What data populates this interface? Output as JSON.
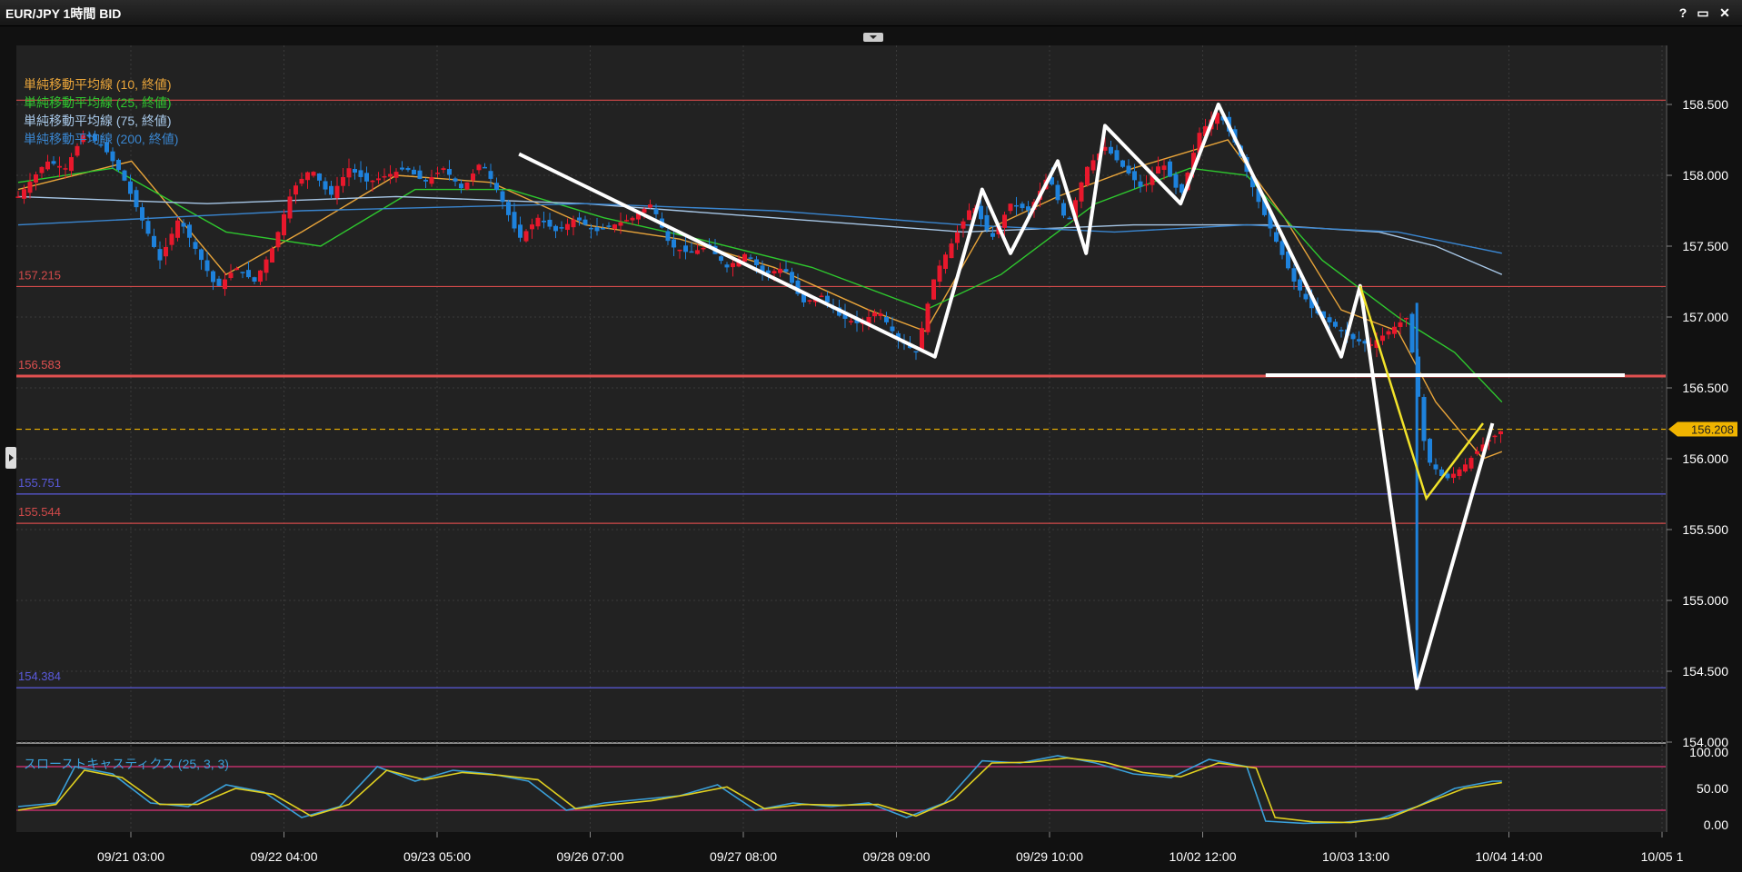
{
  "window": {
    "title": "EUR/JPY 1時間 BID",
    "controls": [
      "?",
      "▭",
      "✕"
    ]
  },
  "indicators": {
    "main": [
      {
        "label": "単純移動平均線 (10, 終値)",
        "color": "#e8a43a"
      },
      {
        "label": "単純移動平均線 (25, 終値)",
        "color": "#2ec82e"
      },
      {
        "label": "単純移動平均線 (75, 終値)",
        "color": "#a8c8e8"
      },
      {
        "label": "単純移動平均線 (200, 終値)",
        "color": "#3a86d0"
      }
    ],
    "sub": {
      "label": "スローストキャスティクス (25, 3, 3)",
      "color": "#3a9fd8"
    }
  },
  "colors": {
    "background": "#222222",
    "up_candle": "#e8182c",
    "down_candle": "#1e82dc",
    "grid": "#3a3a3a",
    "current_price": "#f0b400"
  },
  "chart_data": [
    {
      "type": "candlestick",
      "title": "EUR/JPY 1時間 BID",
      "x_tick_labels": [
        "09/21 03:00",
        "09/22 04:00",
        "09/23 05:00",
        "09/26 07:00",
        "09/27 08:00",
        "09/28 09:00",
        "09/29 10:00",
        "10/02 12:00",
        "10/03 13:00",
        "10/04 14:00",
        "10/05 1"
      ],
      "y_tick_labels": [
        "158.500",
        "158.000",
        "157.500",
        "157.000",
        "156.500",
        "156.000",
        "155.500",
        "155.000",
        "154.500",
        "154.000"
      ],
      "ylim": [
        154.0,
        158.85
      ],
      "current_price": {
        "label": "156.208",
        "value": 156.208
      },
      "horizontal_lines": [
        {
          "value": 158.53,
          "label": "",
          "color": "#d24a4a"
        },
        {
          "value": 157.215,
          "label": "157.215",
          "color": "#d24a4a"
        },
        {
          "value": 156.583,
          "label": "156.583",
          "color": "#e05050"
        },
        {
          "value": 155.751,
          "label": "155.751",
          "color": "#5a5adc"
        },
        {
          "value": 155.544,
          "label": "155.544",
          "color": "#d24a4a"
        },
        {
          "value": 154.384,
          "label": "154.384",
          "color": "#5a5adc"
        }
      ],
      "close_path": [
        [
          0,
          157.85
        ],
        [
          3,
          158.1
        ],
        [
          5,
          158.05
        ],
        [
          7,
          158.3
        ],
        [
          9,
          158.2
        ],
        [
          11,
          158.0
        ],
        [
          13,
          157.7
        ],
        [
          15,
          157.4
        ],
        [
          17,
          157.7
        ],
        [
          19,
          157.45
        ],
        [
          21,
          157.2
        ],
        [
          23,
          157.35
        ],
        [
          25,
          157.25
        ],
        [
          27,
          157.5
        ],
        [
          29,
          157.9
        ],
        [
          31,
          158.05
        ],
        [
          33,
          157.85
        ],
        [
          35,
          158.05
        ],
        [
          37,
          157.95
        ],
        [
          39,
          158.0
        ],
        [
          41,
          158.05
        ],
        [
          43,
          157.95
        ],
        [
          45,
          158.05
        ],
        [
          47,
          157.9
        ],
        [
          49,
          158.1
        ],
        [
          51,
          157.85
        ],
        [
          53,
          157.55
        ],
        [
          55,
          157.7
        ],
        [
          57,
          157.6
        ],
        [
          59,
          157.7
        ],
        [
          61,
          157.6
        ],
        [
          63,
          157.65
        ],
        [
          65,
          157.7
        ],
        [
          67,
          157.8
        ],
        [
          69,
          157.5
        ],
        [
          71,
          157.45
        ],
        [
          73,
          157.5
        ],
        [
          75,
          157.35
        ],
        [
          77,
          157.45
        ],
        [
          79,
          157.3
        ],
        [
          81,
          157.35
        ],
        [
          83,
          157.1
        ],
        [
          85,
          157.15
        ],
        [
          87,
          157.0
        ],
        [
          89,
          156.95
        ],
        [
          91,
          157.05
        ],
        [
          93,
          156.85
        ],
        [
          95,
          156.75
        ],
        [
          97,
          157.3
        ],
        [
          99,
          157.55
        ],
        [
          101,
          157.8
        ],
        [
          103,
          157.55
        ],
        [
          105,
          157.8
        ],
        [
          107,
          157.75
        ],
        [
          109,
          158.0
        ],
        [
          111,
          157.65
        ],
        [
          113,
          158.05
        ],
        [
          115,
          158.2
        ],
        [
          117,
          158.05
        ],
        [
          119,
          157.9
        ],
        [
          121,
          158.1
        ],
        [
          123,
          157.85
        ],
        [
          125,
          158.3
        ],
        [
          127,
          158.45
        ],
        [
          129,
          158.2
        ],
        [
          131,
          157.85
        ],
        [
          133,
          157.55
        ],
        [
          135,
          157.25
        ],
        [
          137,
          157.05
        ],
        [
          139,
          156.95
        ],
        [
          141,
          156.85
        ],
        [
          143,
          156.8
        ],
        [
          145,
          156.9
        ],
        [
          147,
          157.0
        ],
        [
          149,
          156.0
        ],
        [
          151,
          155.85
        ],
        [
          153,
          155.95
        ],
        [
          155,
          156.1
        ],
        [
          157,
          156.2
        ]
      ],
      "sma": {
        "sma10": [
          [
            0,
            157.9
          ],
          [
            12,
            158.1
          ],
          [
            22,
            157.3
          ],
          [
            30,
            157.6
          ],
          [
            40,
            158.0
          ],
          [
            50,
            157.95
          ],
          [
            60,
            157.65
          ],
          [
            70,
            157.55
          ],
          [
            80,
            157.35
          ],
          [
            90,
            157.05
          ],
          [
            96,
            156.9
          ],
          [
            102,
            157.6
          ],
          [
            110,
            157.85
          ],
          [
            118,
            158.05
          ],
          [
            128,
            158.25
          ],
          [
            134,
            157.7
          ],
          [
            140,
            157.05
          ],
          [
            146,
            156.9
          ],
          [
            150,
            156.4
          ],
          [
            155,
            156.0
          ],
          [
            157,
            156.05
          ]
        ],
        "sma25": [
          [
            0,
            157.95
          ],
          [
            10,
            158.05
          ],
          [
            22,
            157.6
          ],
          [
            32,
            157.5
          ],
          [
            42,
            157.9
          ],
          [
            52,
            157.9
          ],
          [
            62,
            157.7
          ],
          [
            72,
            157.55
          ],
          [
            84,
            157.35
          ],
          [
            96,
            157.05
          ],
          [
            104,
            157.3
          ],
          [
            114,
            157.8
          ],
          [
            124,
            158.05
          ],
          [
            130,
            158.0
          ],
          [
            138,
            157.4
          ],
          [
            146,
            157.0
          ],
          [
            152,
            156.75
          ],
          [
            157,
            156.4
          ]
        ],
        "sma75": [
          [
            0,
            157.85
          ],
          [
            20,
            157.8
          ],
          [
            40,
            157.85
          ],
          [
            60,
            157.8
          ],
          [
            80,
            157.7
          ],
          [
            100,
            157.6
          ],
          [
            118,
            157.65
          ],
          [
            132,
            157.65
          ],
          [
            144,
            157.6
          ],
          [
            150,
            157.5
          ],
          [
            157,
            157.3
          ]
        ],
        "sma200": [
          [
            0,
            157.65
          ],
          [
            30,
            157.75
          ],
          [
            60,
            157.8
          ],
          [
            80,
            157.75
          ],
          [
            100,
            157.65
          ],
          [
            116,
            157.6
          ],
          [
            130,
            157.65
          ],
          [
            146,
            157.6
          ],
          [
            157,
            157.45
          ]
        ]
      },
      "drawings": {
        "white_polyline": [
          [
            53,
            158.15
          ],
          [
            97,
            156.72
          ],
          [
            102,
            157.9
          ],
          [
            105,
            157.45
          ],
          [
            110,
            158.1
          ],
          [
            113,
            157.45
          ],
          [
            115,
            158.35
          ],
          [
            123,
            157.8
          ],
          [
            127,
            158.5
          ],
          [
            140,
            156.72
          ],
          [
            142,
            157.22
          ],
          [
            148,
            154.38
          ],
          [
            156,
            156.25
          ]
        ],
        "white_hline": {
          "from": 132,
          "to": 170,
          "value": 156.59
        },
        "yellow_polyline": [
          [
            142,
            157.22
          ],
          [
            149,
            155.72
          ],
          [
            155,
            156.25
          ]
        ]
      }
    },
    {
      "type": "line",
      "title": "スローストキャスティクス (25, 3, 3)",
      "y_tick_labels": [
        "100.00",
        "50.00",
        "0.00"
      ],
      "ylim": [
        0,
        100
      ],
      "levels": [
        80,
        20
      ],
      "k_path": [
        [
          0,
          25
        ],
        [
          4,
          30
        ],
        [
          6,
          80
        ],
        [
          10,
          70
        ],
        [
          14,
          30
        ],
        [
          18,
          25
        ],
        [
          22,
          55
        ],
        [
          26,
          45
        ],
        [
          30,
          10
        ],
        [
          34,
          25
        ],
        [
          38,
          80
        ],
        [
          42,
          60
        ],
        [
          46,
          75
        ],
        [
          50,
          70
        ],
        [
          54,
          60
        ],
        [
          58,
          20
        ],
        [
          62,
          30
        ],
        [
          66,
          35
        ],
        [
          70,
          40
        ],
        [
          74,
          55
        ],
        [
          78,
          20
        ],
        [
          82,
          30
        ],
        [
          86,
          25
        ],
        [
          90,
          30
        ],
        [
          94,
          10
        ],
        [
          98,
          30
        ],
        [
          102,
          88
        ],
        [
          106,
          85
        ],
        [
          110,
          95
        ],
        [
          114,
          85
        ],
        [
          118,
          70
        ],
        [
          122,
          65
        ],
        [
          126,
          90
        ],
        [
          130,
          80
        ],
        [
          132,
          5
        ],
        [
          136,
          2
        ],
        [
          140,
          3
        ],
        [
          144,
          8
        ],
        [
          148,
          25
        ],
        [
          152,
          50
        ],
        [
          156,
          60
        ],
        [
          157,
          60
        ]
      ],
      "d_path": [
        [
          0,
          20
        ],
        [
          4,
          28
        ],
        [
          7,
          75
        ],
        [
          11,
          65
        ],
        [
          15,
          28
        ],
        [
          19,
          28
        ],
        [
          23,
          50
        ],
        [
          27,
          42
        ],
        [
          31,
          12
        ],
        [
          35,
          28
        ],
        [
          39,
          75
        ],
        [
          43,
          62
        ],
        [
          47,
          72
        ],
        [
          51,
          68
        ],
        [
          55,
          62
        ],
        [
          59,
          22
        ],
        [
          63,
          28
        ],
        [
          67,
          33
        ],
        [
          71,
          42
        ],
        [
          75,
          52
        ],
        [
          79,
          22
        ],
        [
          83,
          28
        ],
        [
          87,
          27
        ],
        [
          91,
          28
        ],
        [
          95,
          12
        ],
        [
          99,
          35
        ],
        [
          103,
          85
        ],
        [
          107,
          86
        ],
        [
          111,
          92
        ],
        [
          115,
          86
        ],
        [
          119,
          72
        ],
        [
          123,
          66
        ],
        [
          127,
          85
        ],
        [
          131,
          78
        ],
        [
          133,
          10
        ],
        [
          137,
          4
        ],
        [
          141,
          3
        ],
        [
          145,
          9
        ],
        [
          149,
          30
        ],
        [
          153,
          50
        ],
        [
          157,
          58
        ]
      ]
    }
  ]
}
